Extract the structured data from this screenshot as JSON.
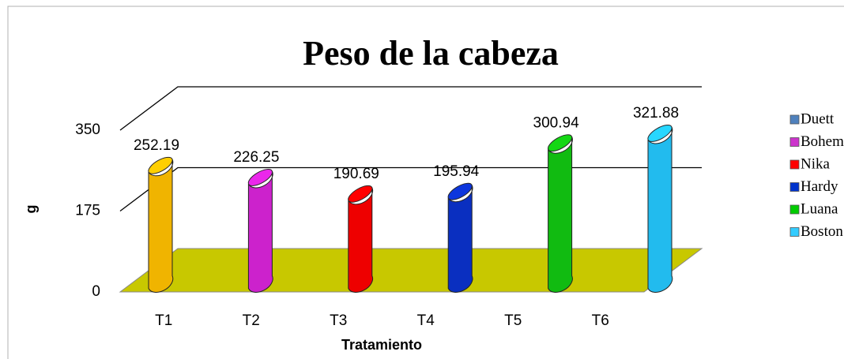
{
  "chart_data": {
    "type": "bar3d",
    "title": "Peso de la cabeza",
    "x_label": "Tratamiento",
    "y_label": "g",
    "categories": [
      "T1",
      "T2",
      "T3",
      "T4",
      "T5",
      "T6"
    ],
    "values": [
      252.19,
      226.25,
      190.69,
      195.94,
      300.94,
      321.88
    ],
    "bar_colors": [
      "#f0b400",
      "#cc22cc",
      "#ee0000",
      "#0a2fc0",
      "#11bb11",
      "#22bbee"
    ],
    "legend": [
      {
        "name": "Duett",
        "color": "#4f81bd"
      },
      {
        "name": "Bohemia",
        "color": "#cc33cc"
      },
      {
        "name": "Nika",
        "color": "#ff0000"
      },
      {
        "name": "Hardy",
        "color": "#0033cc"
      },
      {
        "name": "Luana",
        "color": "#00cc00"
      },
      {
        "name": "Boston",
        "color": "#33ccff"
      }
    ],
    "ylim": [
      0,
      350
    ],
    "yticks": [
      0,
      175,
      350
    ],
    "grid": true,
    "floor_color": "#c8c800"
  }
}
